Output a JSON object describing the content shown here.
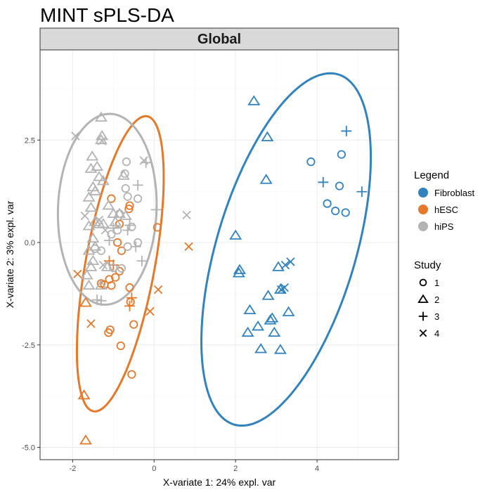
{
  "chart_data": {
    "type": "scatter",
    "title": "MINT sPLS-DA",
    "facet_label": "Global",
    "xlabel": "X-variate 1: 24% expl. var",
    "ylabel": "X-variate 2: 3% expl. var",
    "xlim": [
      -2.8,
      6.0
    ],
    "ylim": [
      -5.3,
      4.7
    ],
    "x_ticks": [
      -2,
      0,
      2,
      4
    ],
    "y_ticks": [
      -5.0,
      -2.5,
      0.0,
      2.5
    ],
    "x_tick_labels": [
      "-2",
      "0",
      "2",
      "4"
    ],
    "y_tick_labels": [
      "-5.0",
      "-2.5",
      "0.0",
      "2.5"
    ],
    "grid": true,
    "legend_position": "right",
    "legend": {
      "color_title": "Legend",
      "color_entries": [
        {
          "label": "Fibroblast",
          "color": "#3182bd"
        },
        {
          "label": "hESC",
          "color": "#e6782a"
        },
        {
          "label": "hiPS",
          "color": "#b3b3b3"
        }
      ],
      "shape_title": "Study",
      "shape_entries": [
        {
          "label": "1",
          "shape": "circle"
        },
        {
          "label": "2",
          "shape": "triangle"
        },
        {
          "label": "3",
          "shape": "plus"
        },
        {
          "label": "4",
          "shape": "cross"
        }
      ]
    },
    "ellipses": [
      {
        "group": "Fibroblast",
        "cx": 3.24,
        "cy": -0.17,
        "rx": 4.46,
        "ry": 1.71,
        "angle_deg": 73.3
      },
      {
        "group": "hESC",
        "cx": -0.83,
        "cy": -0.52,
        "rx": 3.66,
        "ry": 0.85,
        "angle_deg": 79.6
      },
      {
        "group": "hiPS",
        "cx": -1.15,
        "cy": 0.81,
        "rx": 2.33,
        "ry": 1.21,
        "angle_deg": 88.0
      }
    ],
    "series": [
      {
        "group": "Fibroblast",
        "points": [
          {
            "x": 3.85,
            "y": 1.97,
            "study": "1"
          },
          {
            "x": 4.6,
            "y": 2.15,
            "study": "1"
          },
          {
            "x": 4.55,
            "y": 1.38,
            "study": "1"
          },
          {
            "x": 4.25,
            "y": 0.95,
            "study": "1"
          },
          {
            "x": 4.45,
            "y": 0.77,
            "study": "1"
          },
          {
            "x": 4.7,
            "y": 0.73,
            "study": "1"
          },
          {
            "x": 2.45,
            "y": 3.45,
            "study": "2"
          },
          {
            "x": 2.78,
            "y": 2.57,
            "study": "2"
          },
          {
            "x": 2.75,
            "y": 1.53,
            "study": "2"
          },
          {
            "x": 2.0,
            "y": 0.17,
            "study": "2"
          },
          {
            "x": 2.1,
            "y": -0.67,
            "study": "2"
          },
          {
            "x": 2.08,
            "y": -0.75,
            "study": "2"
          },
          {
            "x": 3.05,
            "y": -0.6,
            "study": "2"
          },
          {
            "x": 3.1,
            "y": -1.15,
            "study": "2"
          },
          {
            "x": 2.8,
            "y": -1.3,
            "study": "2"
          },
          {
            "x": 2.35,
            "y": -1.65,
            "study": "2"
          },
          {
            "x": 3.3,
            "y": -1.7,
            "study": "2"
          },
          {
            "x": 2.9,
            "y": -1.85,
            "study": "2"
          },
          {
            "x": 2.85,
            "y": -1.9,
            "study": "2"
          },
          {
            "x": 2.55,
            "y": -2.05,
            "study": "2"
          },
          {
            "x": 2.3,
            "y": -2.2,
            "study": "2"
          },
          {
            "x": 2.95,
            "y": -2.2,
            "study": "2"
          },
          {
            "x": 2.62,
            "y": -2.6,
            "study": "2"
          },
          {
            "x": 3.1,
            "y": -2.62,
            "study": "2"
          },
          {
            "x": 4.72,
            "y": 2.72,
            "study": "3"
          },
          {
            "x": 4.15,
            "y": 1.47,
            "study": "3"
          },
          {
            "x": 5.1,
            "y": 1.24,
            "study": "3"
          },
          {
            "x": 3.35,
            "y": -0.47,
            "study": "4"
          },
          {
            "x": 3.22,
            "y": -0.55,
            "study": "4"
          },
          {
            "x": 3.2,
            "y": -1.1,
            "study": "4"
          },
          {
            "x": 3.12,
            "y": -1.15,
            "study": "4"
          }
        ]
      },
      {
        "group": "hESC",
        "points": [
          {
            "x": -1.05,
            "y": 1.07,
            "study": "1"
          },
          {
            "x": -0.6,
            "y": 0.9,
            "study": "1"
          },
          {
            "x": -0.62,
            "y": 0.82,
            "study": "1"
          },
          {
            "x": 0.08,
            "y": 0.37,
            "study": "1"
          },
          {
            "x": -0.85,
            "y": 0.45,
            "study": "1"
          },
          {
            "x": -0.9,
            "y": 0.0,
            "study": "1"
          },
          {
            "x": -0.8,
            "y": -0.2,
            "study": "1"
          },
          {
            "x": -0.85,
            "y": -0.7,
            "study": "1"
          },
          {
            "x": -0.95,
            "y": -0.85,
            "study": "1"
          },
          {
            "x": -1.1,
            "y": -0.9,
            "study": "1"
          },
          {
            "x": -1.3,
            "y": -1.0,
            "study": "1"
          },
          {
            "x": -1.22,
            "y": -1.03,
            "study": "1"
          },
          {
            "x": -1.05,
            "y": -1.05,
            "study": "1"
          },
          {
            "x": -0.6,
            "y": -1.1,
            "study": "1"
          },
          {
            "x": -0.58,
            "y": -1.45,
            "study": "1"
          },
          {
            "x": -0.5,
            "y": -2.0,
            "study": "1"
          },
          {
            "x": -1.08,
            "y": -2.13,
            "study": "1"
          },
          {
            "x": -1.12,
            "y": -2.2,
            "study": "1"
          },
          {
            "x": -0.82,
            "y": -2.52,
            "study": "1"
          },
          {
            "x": -0.55,
            "y": -3.22,
            "study": "1"
          },
          {
            "x": -1.68,
            "y": -1.47,
            "study": "2"
          },
          {
            "x": -1.72,
            "y": -3.73,
            "study": "2"
          },
          {
            "x": -1.68,
            "y": -4.83,
            "study": "2"
          },
          {
            "x": -1.1,
            "y": -0.45,
            "study": "3"
          },
          {
            "x": -1.0,
            "y": -0.55,
            "study": "3"
          },
          {
            "x": -0.55,
            "y": -1.35,
            "study": "3"
          },
          {
            "x": -0.6,
            "y": -1.55,
            "study": "3"
          },
          {
            "x": 0.85,
            "y": -0.1,
            "study": "4"
          },
          {
            "x": -1.88,
            "y": -0.77,
            "study": "4"
          },
          {
            "x": 0.1,
            "y": -1.15,
            "study": "4"
          },
          {
            "x": -0.1,
            "y": -1.68,
            "study": "4"
          },
          {
            "x": -1.55,
            "y": -1.98,
            "study": "4"
          }
        ]
      },
      {
        "group": "hiPS",
        "points": [
          {
            "x": -0.68,
            "y": 1.97,
            "study": "1"
          },
          {
            "x": -0.72,
            "y": 1.68,
            "study": "1"
          },
          {
            "x": -0.7,
            "y": 1.32,
            "study": "1"
          },
          {
            "x": -0.65,
            "y": 1.12,
            "study": "1"
          },
          {
            "x": -0.4,
            "y": 1.07,
            "study": "1"
          },
          {
            "x": -0.85,
            "y": 0.7,
            "study": "1"
          },
          {
            "x": -0.55,
            "y": 0.38,
            "study": "1"
          },
          {
            "x": -0.9,
            "y": 0.3,
            "study": "1"
          },
          {
            "x": -1.05,
            "y": 0.2,
            "study": "1"
          },
          {
            "x": -0.4,
            "y": 0.0,
            "study": "1"
          },
          {
            "x": -0.65,
            "y": -0.1,
            "study": "1"
          },
          {
            "x": -1.3,
            "y": -0.2,
            "study": "1"
          },
          {
            "x": -1.45,
            "y": -0.15,
            "study": "1"
          },
          {
            "x": -1.0,
            "y": -0.62,
            "study": "1"
          },
          {
            "x": -0.8,
            "y": -0.63,
            "study": "1"
          },
          {
            "x": -1.3,
            "y": 3.05,
            "study": "2"
          },
          {
            "x": -1.28,
            "y": 2.6,
            "study": "2"
          },
          {
            "x": -1.3,
            "y": 2.5,
            "study": "2"
          },
          {
            "x": -1.52,
            "y": 2.1,
            "study": "2"
          },
          {
            "x": -1.55,
            "y": 1.8,
            "study": "2"
          },
          {
            "x": -1.4,
            "y": 1.85,
            "study": "2"
          },
          {
            "x": -1.35,
            "y": 1.6,
            "study": "2"
          },
          {
            "x": -1.5,
            "y": 1.35,
            "study": "2"
          },
          {
            "x": -1.45,
            "y": 1.25,
            "study": "2"
          },
          {
            "x": -1.25,
            "y": 1.5,
            "study": "2"
          },
          {
            "x": -1.6,
            "y": 1.1,
            "study": "2"
          },
          {
            "x": -1.55,
            "y": 0.85,
            "study": "2"
          },
          {
            "x": -1.45,
            "y": 0.5,
            "study": "2"
          },
          {
            "x": -1.35,
            "y": 0.45,
            "study": "2"
          },
          {
            "x": -1.6,
            "y": 0.4,
            "study": "2"
          },
          {
            "x": -1.5,
            "y": 0.1,
            "study": "2"
          },
          {
            "x": -1.45,
            "y": -0.1,
            "study": "2"
          },
          {
            "x": -1.6,
            "y": -0.2,
            "study": "2"
          },
          {
            "x": -1.5,
            "y": -0.45,
            "study": "2"
          },
          {
            "x": -1.55,
            "y": -0.6,
            "study": "2"
          },
          {
            "x": -1.65,
            "y": -0.8,
            "study": "2"
          },
          {
            "x": -1.6,
            "y": -1.05,
            "study": "2"
          },
          {
            "x": -1.3,
            "y": -1.05,
            "study": "2"
          },
          {
            "x": -1.15,
            "y": -0.6,
            "study": "2"
          },
          {
            "x": -1.0,
            "y": 0.7,
            "study": "2"
          },
          {
            "x": -0.85,
            "y": 0.7,
            "study": "2"
          },
          {
            "x": -0.7,
            "y": 0.65,
            "study": "2"
          },
          {
            "x": -0.95,
            "y": 0.5,
            "study": "2"
          },
          {
            "x": -1.12,
            "y": 0.9,
            "study": "2"
          },
          {
            "x": -0.75,
            "y": 1.63,
            "study": "2"
          },
          {
            "x": -1.25,
            "y": 0.45,
            "study": "2"
          },
          {
            "x": -0.2,
            "y": 1.95,
            "study": "3"
          },
          {
            "x": -0.4,
            "y": 1.4,
            "study": "3"
          },
          {
            "x": 0.05,
            "y": 0.8,
            "study": "3"
          },
          {
            "x": -0.6,
            "y": 0.42,
            "study": "3"
          },
          {
            "x": -0.65,
            "y": 0.3,
            "study": "3"
          },
          {
            "x": -1.0,
            "y": 0.35,
            "study": "3"
          },
          {
            "x": -1.1,
            "y": 0.05,
            "study": "3"
          },
          {
            "x": -0.45,
            "y": -0.1,
            "study": "3"
          },
          {
            "x": -0.3,
            "y": -0.45,
            "study": "3"
          },
          {
            "x": -1.4,
            "y": -1.4,
            "study": "3"
          },
          {
            "x": -1.3,
            "y": -1.42,
            "study": "3"
          },
          {
            "x": -1.93,
            "y": 2.6,
            "study": "4"
          },
          {
            "x": -1.28,
            "y": 2.48,
            "study": "4"
          },
          {
            "x": -0.25,
            "y": 2.0,
            "study": "4"
          },
          {
            "x": -1.7,
            "y": 0.65,
            "study": "4"
          },
          {
            "x": -1.35,
            "y": 0.55,
            "study": "4"
          },
          {
            "x": -1.2,
            "y": 0.3,
            "study": "4"
          },
          {
            "x": 0.8,
            "y": 0.67,
            "study": "4"
          },
          {
            "x": -1.25,
            "y": -0.55,
            "study": "4"
          }
        ]
      }
    ]
  }
}
